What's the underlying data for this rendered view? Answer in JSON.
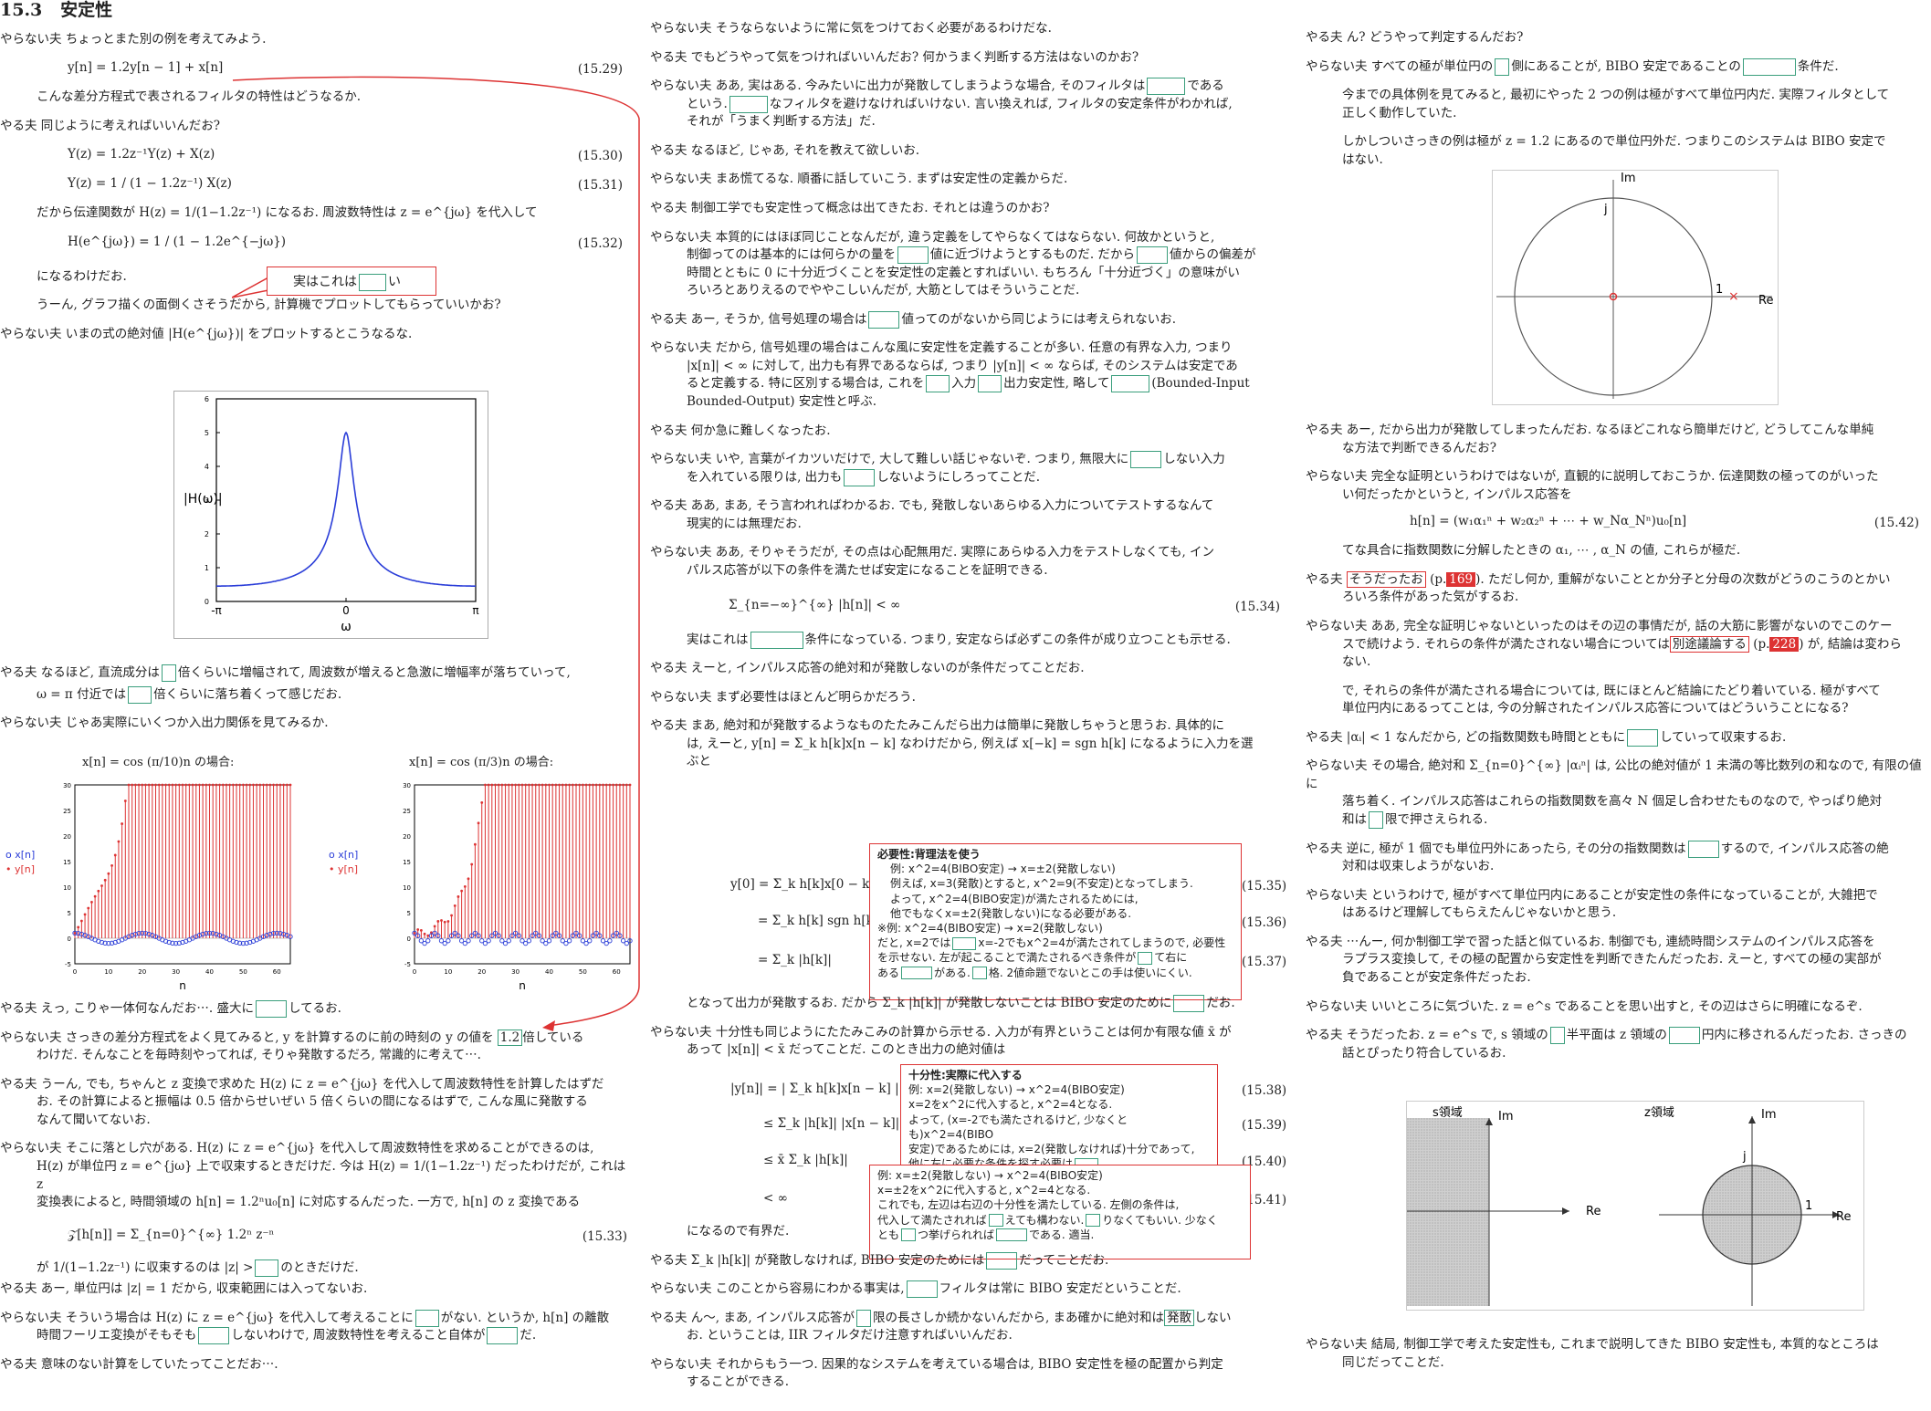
{
  "col1": {
    "section_num": "15.3",
    "section_title": "安定性",
    "p1": "やらない夫  ちょっとまた別の例を考えてみよう.",
    "eq1": "y[n] = 1.2y[n − 1] + x[n]",
    "eq1_no": "(15.29)",
    "p2": "こんな差分方程式で表されるフィルタの特性はどうなるか.",
    "p3": "やる夫  同じように考えればいいんだお?",
    "eq2": "Y(z) = 1.2z⁻¹Y(z) + X(z)",
    "eq2_no": "(15.30)",
    "eq3": "Y(z) = 1 / (1 − 1.2z⁻¹) X(z)",
    "eq3_no": "(15.31)",
    "p4": "だから伝達関数が H(z) = 1/(1−1.2z⁻¹) になるお. 周波数特性は z = e^{jω} を代入して",
    "eq4": "H(e^{jω}) = 1 / (1 − 1.2e^{−jω})",
    "eq4_no": "(15.32)",
    "callout": "実はこれは",
    "callout_tail": "い",
    "p5": "になるわけだお.",
    "p6": "うーん, グラフ描くの面倒くさそうだから, 計算機でプロットしてもらっていいかお?",
    "p7": "やらない夫  いまの式の絶対値 |H(e^{jω})| をプロットするとこうなるな.",
    "p8a": "やる夫  なるほど, 直流成分は",
    "p8b": "倍くらいに増幅されて, 周波数が増えると急激に増幅率が落ちていって,",
    "p8c": "ω = π 付近では",
    "p8d": "倍くらいに落ち着くって感じだお.",
    "p9": "やらない夫  じゃあ実際にいくつか入出力関係を見てみるか.",
    "cap_left": "x[n] = cos (π/10)n の場合:",
    "cap_right": "x[n] = cos (π/3)n の場合:",
    "p10a": "やる夫  えっ, こりゃ一体何なんだお⋯. 盛大に",
    "p10b": "してるお.",
    "p11a": "やらない夫  さっきの差分方程式をよく見てみると, y を計算するのに前の時刻の y の値を",
    "p11hl": "1.2",
    "p11b": "倍している",
    "p11c": "わけだ. そんなことを毎時刻やってれば, そりゃ発散するだろ, 常識的に考えて⋯.",
    "p12a": "やる夫  うーん, でも, ちゃんと z 変換で求めた H(z) に z = e^{jω} を代入して周波数特性を計算したはずだ",
    "p12b": "お. その計算によると振幅は 0.5 倍からせいぜい 5 倍くらいの間になるはずで, こんな風に発散する",
    "p12c": "なんて聞いてないお.",
    "p13a": "やらない夫  そこに落とし穴がある. H(z) に z = e^{jω} を代入して周波数特性を求めることができるのは,",
    "p13b": "H(z) が単位円 z = e^{jω} 上で収束するときだけだ. 今は H(z) = 1/(1−1.2z⁻¹) だったわけだが, これは z",
    "p13c": "変換表によると, 時間領域の h[n] = 1.2ⁿu₀[n] に対応するんだった. 一方で, h[n] の z 変換である",
    "eq5": "𝒵[h[n]] = Σ_{n=0}^{∞} 1.2ⁿ z⁻ⁿ",
    "eq5_no": "(15.33)",
    "p14a": "が 1/(1−1.2z⁻¹) に収束するのは |z| >",
    "p14b": "のときだけだ.",
    "p15": "やる夫  あー, 単位円は |z| = 1 だから, 収束範囲には入ってないお.",
    "p16a": "やらない夫  そういう場合は H(z) に z = e^{jω} を代入して考えることに",
    "p16b": "がない. というか, h[n] の離散",
    "p16c": "時間フーリエ変換がそもそも",
    "p16d": "しないわけで, 周波数特性を考えること自体が",
    "p16e": "だ.",
    "p17": "やる夫  意味のない計算をしていたってことだお⋯."
  },
  "plot_mag": {
    "ylabel": "|H(ω)|",
    "xlabel": "ω",
    "xticks": [
      "-π",
      "0",
      "π"
    ],
    "yticks": [
      "0",
      "1",
      "2",
      "3",
      "4",
      "5",
      "6"
    ]
  },
  "plot_stem": {
    "xlabel": "n",
    "legend": [
      "x[n]",
      "y[n]"
    ],
    "xticks": [
      "0",
      "10",
      "20",
      "30",
      "40",
      "50",
      "60"
    ],
    "yticks": [
      "-5",
      "0",
      "5",
      "10",
      "15",
      "20",
      "25",
      "30"
    ]
  },
  "col2": {
    "q1": "やらない夫  そうならないように常に気をつけておく必要があるわけだな.",
    "q2": "やる夫  でもどうやって気をつければいいんだお? 何かうまく判断する方法はないのかお?",
    "q3a": "やらない夫  ああ, 実はある. 今みたいに出力が発散してしまうような場合, そのフィルタは",
    "q3b": "である",
    "q3c": "という.",
    "q3d": "なフィルタを避けなければいけない. 言い換えれば, フィルタの安定条件がわかれば,",
    "q3e": "それが「うまく判断する方法」だ.",
    "q4": "やる夫  なるほど, じゃあ, それを教えて欲しいお.",
    "q5": "やらない夫  まあ慌てるな. 順番に話していこう. まずは安定性の定義からだ.",
    "q6": "やる夫  制御工学でも安定性って概念は出てきたお. それとは違うのかお?",
    "q7a": "やらない夫  本質的にはほぼ同じことなんだが, 違う定義をしてやらなくてはならない. 何故かというと,",
    "q7b": "制御ってのは基本的には何らかの量を",
    "q7c": "値に近づけようとするものだ. だから",
    "q7d": "値からの偏差が",
    "q7e": "時間とともに 0 に十分近づくことを安定性の定義とすればいい. もちろん「十分近づく」の意味がい",
    "q7f": "ろいろとありえるのでややこしいんだが, 大筋としてはそういうことだ.",
    "q8a": "やる夫  あー, そうか, 信号処理の場合は",
    "q8b": "値ってのがないから同じようには考えられないお.",
    "q9a": "やらない夫  だから, 信号処理の場合はこんな風に安定性を定義することが多い. 任意の有界な入力, つまり",
    "q9b": "|x[n]| < ∞ に対して, 出力も有界であるならば, つまり |y[n]| < ∞ ならば, そのシステムは安定であ",
    "q9c": "ると定義する. 特に区別する場合は, これを",
    "q9d": "入力",
    "q9e": "出力安定性, 略して",
    "q9f": "(Bounded-Input",
    "q9g": "Bounded-Output) 安定性と呼ぶ.",
    "q10": "やる夫  何か急に難しくなったお.",
    "q11a": "やらない夫  いや, 言葉がイカツいだけで, 大して難しい話じゃないぞ. つまり, 無限大に",
    "q11b": "しない入力",
    "q11c": "を入れている限りは, 出力も",
    "q11d": "しないようにしろってことだ.",
    "q12a": "やる夫  ああ, まあ, そう言われればわかるお. でも, 発散しないあらゆる入力についてテストするなんて",
    "q12b": "現実的には無理だお.",
    "q13a": "やらない夫  ああ, そりゃそうだが, その点は心配無用だ. 実際にあらゆる入力をテストしなくても, イン",
    "q13b": "パルス応答が以下の条件を満たせば安定になることを証明できる.",
    "eq6": "Σ_{n=−∞}^{∞} |h[n]| < ∞",
    "eq6_no": "(15.34)",
    "q14a": "実はこれは",
    "q14b": "条件になっている. つまり, 安定ならば必ずこの条件が成り立つことも示せる.",
    "q15": "やる夫  えーと, インパルス応答の絶対和が発散しないのが条件だってことだお.",
    "q16": "やらない夫  まず必要性はほとんど明らかだろう.",
    "q17a": "やる夫  まあ, 絶対和が発散するようなものたたみこんだら出力は簡単に発散しちゃうと思うお. 具体的に",
    "q17b": "は, えーと, y[n] = Σ_k h[k]x[n − k] なわけだから, 例えば x[−k] = sgn h[k] になるように入力を選",
    "q17c": "ぶと",
    "eq7": "y[0] = Σ_k h[k]x[0 − k]",
    "eq7_no": "(15.35)",
    "eq8": "= Σ_k h[k] sgn h[k]",
    "eq8_no": "(15.36)",
    "eq9": "= Σ_k |h[k]|",
    "eq9_no": "(15.37)",
    "q18a": "となって出力が発散するお. だから Σ_k |h[k]| が発散しないことは BIBO 安定のために",
    "q18b": "だお.",
    "q19a": "やらない夫  十分性も同じようにたたみこみの計算から示せる. 入力が有界ということは何か有限な値 x̄ が",
    "q19b": "あって |x[n]| < x̄ だってことだ. このとき出力の絶対値は",
    "eq10": "|y[n]| = | Σ_k h[k]x[n − k] |",
    "eq10_no": "(15.38)",
    "eq11": "≤ Σ_k |h[k]| |x[n − k]|",
    "eq11_no": "(15.39)",
    "eq12": "≤ x̄ Σ_k |h[k]|",
    "eq12_no": "(15.40)",
    "eq13": "< ∞",
    "eq13_no": "(15.41)",
    "q20": "になるので有界だ.",
    "q21a": "やる夫  Σ_k |h[k]| が発散しなければ, BIBO 安定のためには",
    "q21b": "だってことだお.",
    "q22a": "やらない夫  このことから容易にわかる事実は,",
    "q22b": "フィルタは常に BIBO 安定だということだ.",
    "q23a": "やる夫  ん〜, まあ, インパルス応答が",
    "q23b": "限の長さしか続かないんだから, まあ確かに絶対和は",
    "q23hl": "発散",
    "q23c": "しない",
    "q23d": "お. ということは, IIR フィルタだけ注意すればいいんだお.",
    "q24a": "やらない夫  それからもう一つ. 因果的なシステムを考えている場合は, BIBO 安定性を極の配置から判定",
    "q24b": "することができる."
  },
  "note1": {
    "title": "必要性:背理法を使う",
    "l1": "例: x^2=4(BIBO安定) → x=±2(発散しない)",
    "l2": "例えば, x=3(発散)とすると, x^2=9(不安定)となってしまう.",
    "l3": "よって, x^2=4(BIBO安定)が満たされるためには,",
    "l4": "他でもなくx=±2(発散しない)になる必要がある.",
    "l5": "※例: x^2=4(BIBO安定) → x=2(発散しない)",
    "l6": "だと, x=2では",
    "l6b": "x=-2でもx^2=4が満たされてしまうので, 必要性",
    "l7": "を示せない. 左が起こることで満たされるべき条件が",
    "l7b": "て右に",
    "l8": "ある",
    "l8b": "がある.",
    "l8c": "格. 2値命題でないとこの手は使いにくい."
  },
  "note2": {
    "title": "十分性:実際に代入する",
    "l1": "例: x=2(発散しない) → x^2=4(BIBO安定)",
    "l2": "x=2をx^2に代入すると, x^2=4となる.",
    "l3": "よって, (x=-2でも満たされるけど, 少なくとも)x^2=4(BIBO",
    "l4": "安定)であるためには, x=2(発散しなければ)十分であって,",
    "l5": "他に左に必要な条件を探す必要は"
  },
  "note3": {
    "l1": "例: x=±2(発散しない) → x^2=4(BIBO安定)",
    "l2": "x=±2をx^2に代入すると, x^2=4となる.",
    "l3": "これでも, 左辺は右辺の十分性を満たしている. 左側の条件は,",
    "l4": "代入して満たされれば",
    "l4b": "えても構わない.",
    "l4c": "りなくてもいい. 少なく",
    "l5": "とも",
    "l5b": "つ挙げられれば",
    "l5c": "である. 適当."
  },
  "col3": {
    "r1": "やる夫  ん? どうやって判定するんだお?",
    "r2a": "やらない夫  すべての極が単位円の",
    "r2b": "側にあることが, BIBO 安定であることの",
    "r2c": "条件だ.",
    "r3a": "今までの具体例を見てみると, 最初にやった 2 つの例は極がすべて単位円内だ. 実際フィルタとして",
    "r3b": "正しく動作していた.",
    "r4a": "しかしついさっきの例は極が z = 1.2 にあるので単位円外だ. つまりこのシステムは BIBO 安定で",
    "r4b": "はない.",
    "r5a": "やる夫  あー, だから出力が発散してしまったんだお. なるほどこれなら簡単だけど, どうしてこんな単純",
    "r5b": "な方法で判断できるんだお?",
    "r6a": "やらない夫  完全な証明というわけではないが, 直観的に説明しておこうか. 伝達関数の極ってのがいった",
    "r6b": "い何だったかというと, インパルス応答を",
    "eq14": "h[n] = (w₁α₁ⁿ + w₂α₂ⁿ + ⋯ + w_Nα_Nⁿ)u₀[n]",
    "eq14_no": "(15.42)",
    "r7": "てな具合に指数関数に分解したときの α₁, ⋯ , α_N の値, これらが極だ.",
    "r8a": "やる夫",
    "r8hl": "そうだったお",
    "r8b": "(p.",
    "r8pg": "169",
    "r8c": "). ただし何か, 重解がないこととか分子と分母の次数がどうのこうのとかい",
    "r8d": "ろいろ条件があった気がするお.",
    "r9a": "やらない夫  ああ, 完全な証明じゃないといったのはその辺の事情だが, 話の大筋に影響がないのでこのケー",
    "r9b": "スで続けよう. それらの条件が満たされない場合については",
    "r9hl": "別途議論する",
    "r9c": "(p.",
    "r9pg": "228",
    "r9d": ") が, 結論は変わら",
    "r9e": "ない.",
    "r10a": "で, それらの条件が満たされる場合については, 既にほとんど結論にたどり着いている. 極がすべて",
    "r10b": "単位円内にあるってことは, 今の分解されたインパルス応答についてはどういうことになる?",
    "r11a": "やる夫  |αᵢ| < 1 なんだから, どの指数関数も時間とともに",
    "r11b": "していって収束するお.",
    "r12a": "やらない夫  その場合, 絶対和 Σ_{n=0}^{∞} |αᵢⁿ| は, 公比の絶対値が 1 未満の等比数列の和なので, 有限の値に",
    "r12b": "落ち着く. インパルス応答はこれらの指数関数を高々 N 個足し合わせたものなので, やっぱり絶対",
    "r12c": "和は",
    "r12d": "限で押さえられる.",
    "r13a": "やる夫  逆に, 極が 1 個でも単位円外にあったら, その分の指数関数は",
    "r13b": "するので, インパルス応答の絶",
    "r13c": "対和は収束しようがないお.",
    "r14a": "やらない夫  というわけで, 極がすべて単位円内にあることが安定性の条件になっていることが, 大雑把で",
    "r14b": "はあるけど理解してもらえたんじゃないかと思う.",
    "r15a": "やる夫  ⋯んー, 何か制御工学で習った話と似ているお. 制御でも, 連続時間システムのインパルス応答を",
    "r15b": "ラプラス変換して, その極の配置から安定性を判断できたんだったお. えーと, すべての極の実部が",
    "r15c": "負であることが安定条件だったお.",
    "r16": "やらない夫  いいところに気づいた. z = e^s であることを思い出すと, その辺はさらに明確になるぞ.",
    "r17a": "やる夫  そうだったお. z = e^s で, s 領域の",
    "r17b": "半平面は z 領域の",
    "r17c": "円内に移されるんだったお. さっきの",
    "r17d": "話とぴったり符合しているお.",
    "r18a": "やらない夫  結局, 制御工学で考えた安定性も, これまで説明してきた BIBO 安定性も, 本質的なところは",
    "r18b": "同じだってことだ."
  },
  "zplane": {
    "im": "Im",
    "re": "Re",
    "j": "j",
    "one": "1"
  },
  "splane": {
    "title_s": "s領域",
    "title_z": "z領域",
    "im": "Im",
    "re": "Re",
    "j": "j",
    "one": "1"
  }
}
